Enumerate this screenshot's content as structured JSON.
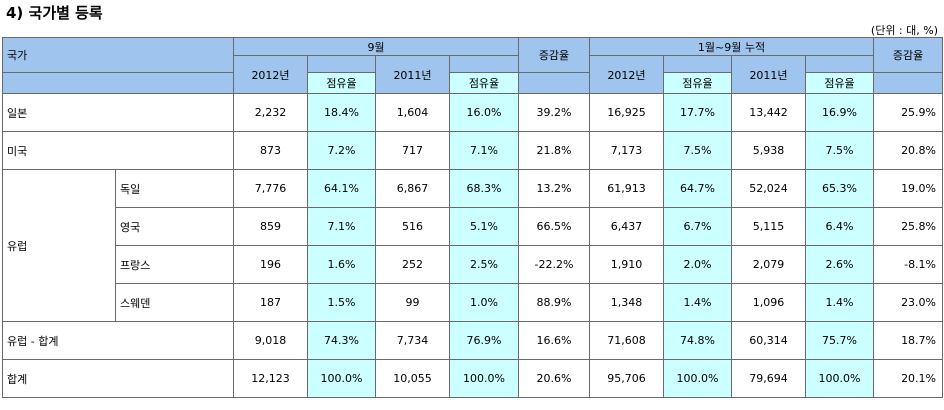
{
  "section": {
    "title": "4) 국가별 등록",
    "unit": "(단위 : 대, %)"
  },
  "header": {
    "country": "국가",
    "sep": "9월",
    "cum": "1월~9월 누적",
    "y2012": "2012년",
    "y2011": "2011년",
    "share": "점유율",
    "change": "증감율"
  },
  "rows": [
    {
      "label": "일본",
      "sep": [
        "2,232",
        "18.4%",
        "1,604",
        "16.0%",
        "39.2%"
      ],
      "cum": [
        "16,925",
        "17.7%",
        "13,442",
        "16.9%",
        "25.9%"
      ]
    },
    {
      "label": "미국",
      "sep": [
        "873",
        "7.2%",
        "717",
        "7.1%",
        "21.8%"
      ],
      "cum": [
        "7,173",
        "7.5%",
        "5,938",
        "7.5%",
        "20.8%"
      ]
    },
    {
      "group": "유럽",
      "label": "독일",
      "sep": [
        "7,776",
        "64.1%",
        "6,867",
        "68.3%",
        "13.2%"
      ],
      "cum": [
        "61,913",
        "64.7%",
        "52,024",
        "65.3%",
        "19.0%"
      ]
    },
    {
      "label": "영국",
      "sep": [
        "859",
        "7.1%",
        "516",
        "5.1%",
        "66.5%"
      ],
      "cum": [
        "6,437",
        "6.7%",
        "5,115",
        "6.4%",
        "25.8%"
      ]
    },
    {
      "label": "프랑스",
      "sep": [
        "196",
        "1.6%",
        "252",
        "2.5%",
        "-22.2%"
      ],
      "cum": [
        "1,910",
        "2.0%",
        "2,079",
        "2.6%",
        "-8.1%"
      ]
    },
    {
      "label": "스웨덴",
      "sep": [
        "187",
        "1.5%",
        "99",
        "1.0%",
        "88.9%"
      ],
      "cum": [
        "1,348",
        "1.4%",
        "1,096",
        "1.4%",
        "23.0%"
      ]
    },
    {
      "label": "유럽 - 합계",
      "sep": [
        "9,018",
        "74.3%",
        "7,734",
        "76.9%",
        "16.6%"
      ],
      "cum": [
        "71,608",
        "74.8%",
        "60,314",
        "75.7%",
        "18.7%"
      ]
    },
    {
      "label": "합계",
      "sep": [
        "12,123",
        "100.0%",
        "10,055",
        "100.0%",
        "20.6%"
      ],
      "cum": [
        "95,706",
        "100.0%",
        "79,694",
        "100.0%",
        "20.1%"
      ]
    }
  ]
}
